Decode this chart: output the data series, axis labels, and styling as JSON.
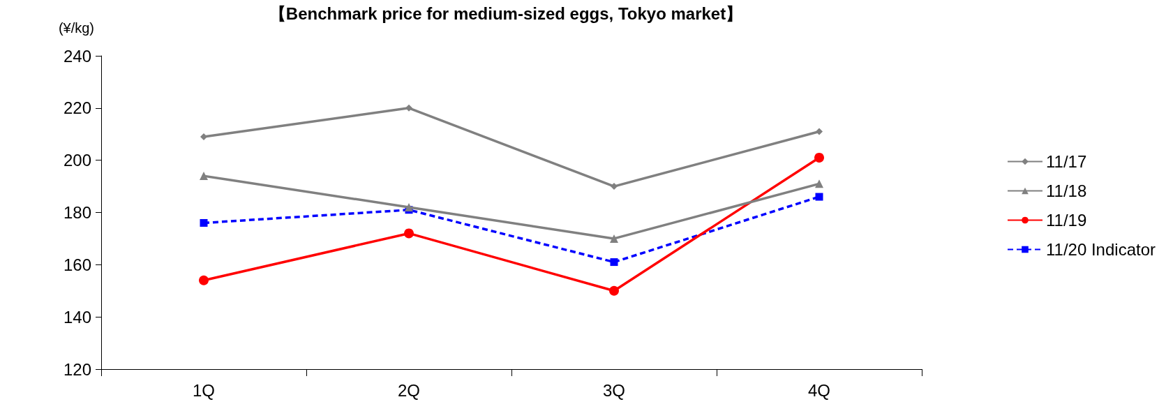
{
  "chart_data": {
    "type": "line",
    "title": "【Benchmark price for medium-sized eggs, Tokyo market】",
    "ylabel": "(¥/kg)",
    "categories": [
      "1Q",
      "2Q",
      "3Q",
      "4Q"
    ],
    "series": [
      {
        "name": "11/17",
        "color": "#808080",
        "marker": "diamond",
        "line_style": "solid",
        "values": [
          209,
          220,
          190,
          211
        ]
      },
      {
        "name": "11/18",
        "color": "#808080",
        "marker": "triangle",
        "line_style": "solid",
        "values": [
          194,
          182,
          170,
          191
        ]
      },
      {
        "name": "11/19",
        "color": "#ff0000",
        "marker": "circle",
        "line_style": "solid",
        "values": [
          154,
          172,
          150,
          201
        ]
      },
      {
        "name": "11/20 Indicator",
        "color": "#0000ff",
        "marker": "square",
        "line_style": "dashed",
        "values": [
          176,
          181,
          161,
          186
        ]
      }
    ],
    "ylim": [
      120,
      240
    ],
    "yticks": [
      120,
      140,
      160,
      180,
      200,
      220,
      240
    ],
    "grid": false,
    "legend": "right"
  }
}
